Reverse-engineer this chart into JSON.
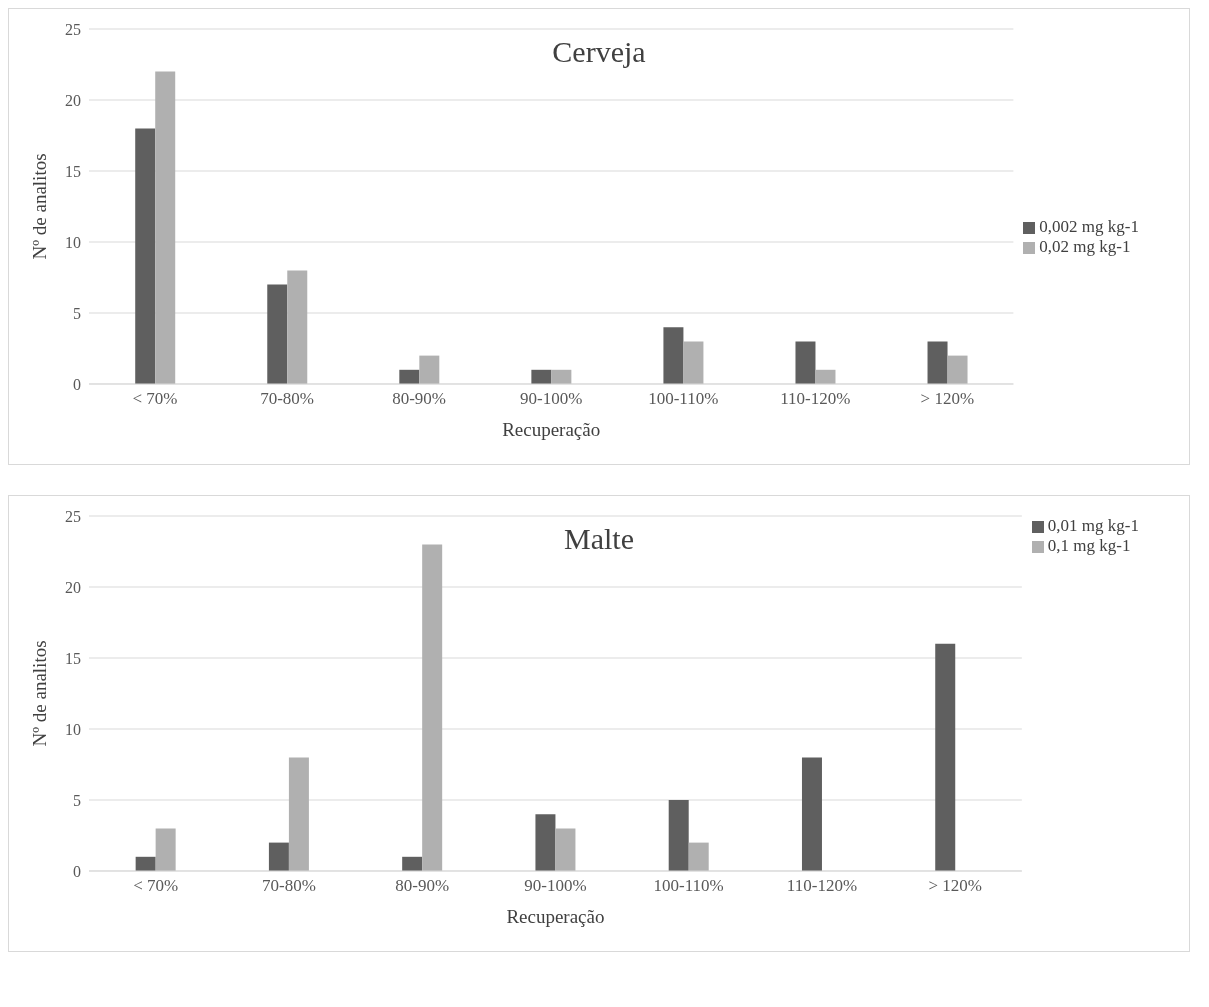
{
  "chart_data": [
    {
      "type": "bar",
      "title": "Cerveja",
      "xlabel": "Recuperação",
      "ylabel": "Nº de analitos",
      "categories": [
        "< 70%",
        "70-80%",
        "80-90%",
        "90-100%",
        "100-110%",
        "110-120%",
        "> 120%"
      ],
      "series": [
        {
          "name": "0,002 mg kg-1",
          "color": "#5f5f5f",
          "values": [
            18,
            7,
            1,
            1,
            4,
            3,
            3
          ]
        },
        {
          "name": "0,02 mg kg-1",
          "color": "#b0b0b0",
          "values": [
            22,
            8,
            2,
            1,
            3,
            1,
            2
          ]
        }
      ],
      "ylim": [
        0,
        25
      ],
      "yticks": [
        0,
        5,
        10,
        15,
        20,
        25
      ],
      "grid": "y",
      "legend": "right"
    },
    {
      "type": "bar",
      "title": "Malte",
      "xlabel": "Recuperação",
      "ylabel": "Nº de analitos",
      "categories": [
        "< 70%",
        "70-80%",
        "80-90%",
        "90-100%",
        "100-110%",
        "110-120%",
        "> 120%"
      ],
      "series": [
        {
          "name": "0,01 mg kg-1",
          "color": "#5f5f5f",
          "values": [
            1,
            2,
            1,
            4,
            5,
            8,
            16
          ]
        },
        {
          "name": "0,1 mg kg-1",
          "color": "#b0b0b0",
          "values": [
            3,
            8,
            23,
            3,
            2,
            0,
            0
          ]
        }
      ],
      "ylim": [
        0,
        25
      ],
      "yticks": [
        0,
        5,
        10,
        15,
        20,
        25
      ],
      "grid": "y",
      "legend": "top right"
    }
  ]
}
